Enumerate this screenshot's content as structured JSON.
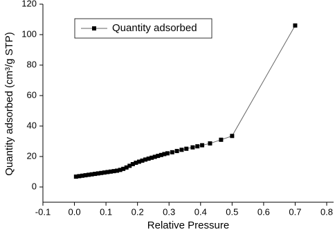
{
  "chart_data": {
    "type": "line",
    "x_label": "Relative Pressure",
    "y_label": "Quantity adsorbed (cm³/g STP)",
    "x": [
      0.005,
      0.015,
      0.025,
      0.035,
      0.045,
      0.055,
      0.065,
      0.075,
      0.085,
      0.095,
      0.105,
      0.115,
      0.125,
      0.135,
      0.145,
      0.155,
      0.165,
      0.175,
      0.185,
      0.195,
      0.205,
      0.215,
      0.225,
      0.235,
      0.245,
      0.255,
      0.265,
      0.275,
      0.285,
      0.295,
      0.31,
      0.325,
      0.34,
      0.355,
      0.375,
      0.39,
      0.405,
      0.43,
      0.465,
      0.5,
      0.7
    ],
    "series": [
      {
        "name": "Quantity adsorbed",
        "color": "#000000",
        "line_color": "#666666",
        "values": [
          6.8,
          7.1,
          7.4,
          7.7,
          8.0,
          8.3,
          8.6,
          8.9,
          9.2,
          9.5,
          9.8,
          10.1,
          10.4,
          10.7,
          11.2,
          11.9,
          12.8,
          13.9,
          15.0,
          15.9,
          16.6,
          17.3,
          18.0,
          18.6,
          19.2,
          19.8,
          20.4,
          21.0,
          21.6,
          22.1,
          22.8,
          23.6,
          24.4,
          25.1,
          26.0,
          26.7,
          27.4,
          28.6,
          31.0,
          33.5,
          106
        ]
      }
    ],
    "xlim": [
      -0.1,
      0.8
    ],
    "xticks": [
      -0.1,
      {
        "value": 0,
        "label": "0.0"
      },
      0.1,
      0.2,
      0.3,
      0.4,
      0.5,
      0.6,
      0.7,
      0.8
    ],
    "ylim": [
      -10,
      120
    ],
    "yticks": [
      0,
      20,
      40,
      60,
      80,
      100,
      120
    ],
    "legend": "upper left",
    "grid": false
  }
}
